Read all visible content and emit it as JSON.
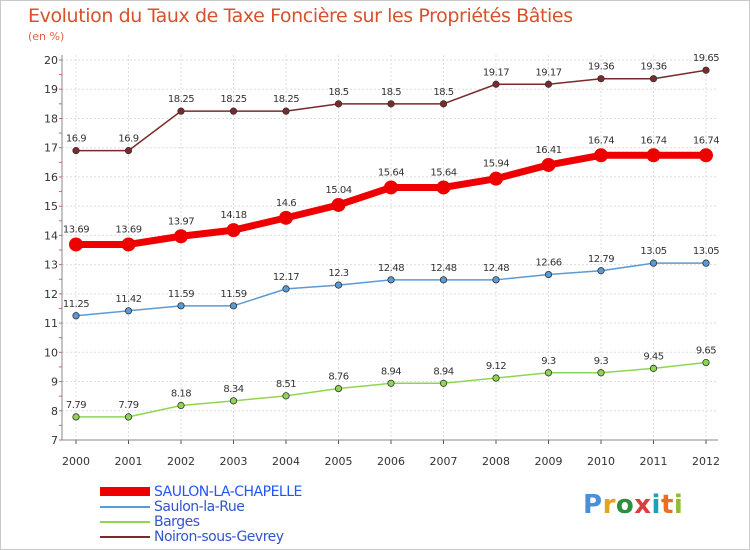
{
  "header": {
    "title": "Evolution du Taux de Taxe Foncière sur les Propriétés Bâties",
    "subtitle": "(en %)"
  },
  "logo": {
    "text": "Proxiti",
    "colors": [
      "#4a8fd8",
      "#e8a020",
      "#2f8f3f",
      "#d84040",
      "#1f9fbf",
      "#e87020",
      "#8fbf30"
    ]
  },
  "chart_data": {
    "type": "line",
    "title": "Evolution du Taux de Taxe Foncière sur les Propriétés Bâties",
    "subtitle": "(en %)",
    "ylim": [
      7,
      20
    ],
    "yticks": [
      7,
      8,
      9,
      10,
      11,
      12,
      13,
      14,
      15,
      16,
      17,
      18,
      19,
      20
    ],
    "x": [
      "2000",
      "2001",
      "2002",
      "2003",
      "2004",
      "2005",
      "2006",
      "2007",
      "2008",
      "2009",
      "2010",
      "2011",
      "2012"
    ],
    "grid": true,
    "legend_position": "bottom-left",
    "series": [
      {
        "name": "SAULON-LA-CHAPELLE",
        "color": "#ee0000",
        "bold": true,
        "values": [
          13.69,
          13.69,
          13.97,
          14.18,
          14.6,
          15.04,
          15.64,
          15.64,
          15.94,
          16.41,
          16.74,
          16.74,
          16.74
        ],
        "labels": [
          "13.69",
          "13.69",
          "13.97",
          "14.18",
          "14.6",
          "15.04",
          "15.64",
          "15.64",
          "15.94",
          "16.41",
          "16.74",
          "16.74",
          "16.74"
        ]
      },
      {
        "name": "Saulon-la-Rue",
        "color": "#5b9bd5",
        "bold": false,
        "values": [
          11.25,
          11.42,
          11.59,
          11.59,
          12.17,
          12.3,
          12.48,
          12.48,
          12.48,
          12.66,
          12.79,
          13.05,
          13.05
        ],
        "labels": [
          "11.25",
          "11.42",
          "11.59",
          "11.59",
          "12.17",
          "12.3",
          "12.48",
          "12.48",
          "12.48",
          "12.66",
          "12.79",
          "13.05",
          "13.05"
        ]
      },
      {
        "name": "Barges",
        "color": "#8fd650",
        "bold": false,
        "values": [
          7.79,
          7.79,
          8.18,
          8.34,
          8.51,
          8.76,
          8.94,
          8.94,
          9.12,
          9.3,
          9.3,
          9.45,
          9.65
        ],
        "labels": [
          "7.79",
          "7.79",
          "8.18",
          "8.34",
          "8.51",
          "8.76",
          "8.94",
          "8.94",
          "9.12",
          "9.3",
          "9.3",
          "9.45",
          "9.65"
        ]
      },
      {
        "name": "Noiron-sous-Gevrey",
        "color": "#7a2a2a",
        "bold": false,
        "values": [
          16.9,
          16.9,
          18.25,
          18.25,
          18.25,
          18.5,
          18.5,
          18.5,
          19.17,
          19.17,
          19.36,
          19.36,
          19.65
        ],
        "labels": [
          "16.9",
          "16.9",
          "18.25",
          "18.25",
          "18.25",
          "18.5",
          "18.5",
          "18.5",
          "19.17",
          "19.17",
          "19.36",
          "19.36",
          "19.65"
        ]
      }
    ]
  }
}
